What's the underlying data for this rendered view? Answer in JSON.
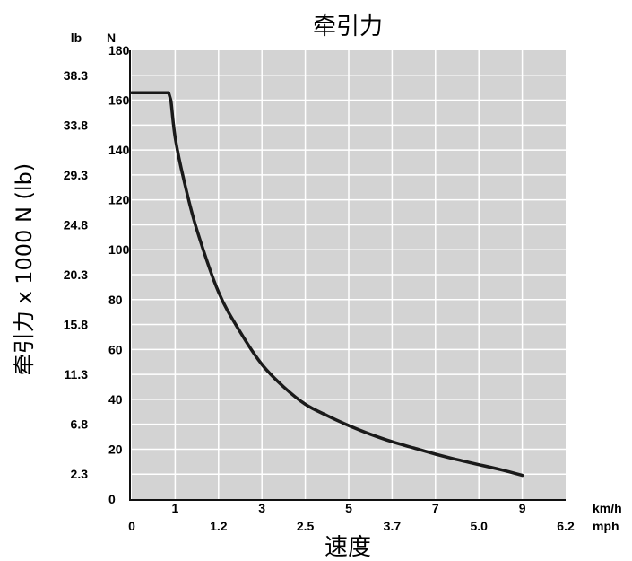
{
  "chart_data": {
    "type": "line",
    "title": "牵引力",
    "xlabel": "速度",
    "ylabel": "牵引力 x 1000 N (lb)",
    "x_unit_primary": "km/h",
    "x_unit_secondary": "mph",
    "y_unit_primary": "N",
    "y_unit_secondary": "lb",
    "xlim": [
      0,
      10
    ],
    "ylim": [
      0,
      180
    ],
    "grid": true,
    "x_ticks_kmh": [
      "1",
      "3",
      "5",
      "7",
      "9"
    ],
    "x_ticks_mph": [
      "0",
      "1.2",
      "2.5",
      "3.7",
      "5.0",
      "6.2"
    ],
    "y_ticks_n": [
      "0",
      "20",
      "40",
      "60",
      "80",
      "100",
      "120",
      "140",
      "160",
      "180"
    ],
    "y_ticks_lb": [
      "2.3",
      "6.8",
      "11.3",
      "15.8",
      "20.3",
      "24.8",
      "29.3",
      "33.8",
      "38.3"
    ],
    "series": [
      {
        "x": [
          0,
          0.85,
          0.9,
          1.0,
          1.2,
          1.5,
          2.0,
          2.5,
          3.0,
          3.5,
          4.0,
          4.5,
          5.0,
          5.5,
          6.0,
          6.5,
          7.0,
          7.5,
          8.0,
          8.5,
          9.0
        ],
        "y": [
          163,
          163,
          160,
          145,
          128,
          108,
          83,
          67,
          54,
          45,
          38,
          33.5,
          29.5,
          26,
          23,
          20.5,
          18,
          15.8,
          13.8,
          11.8,
          9.5
        ]
      }
    ]
  }
}
